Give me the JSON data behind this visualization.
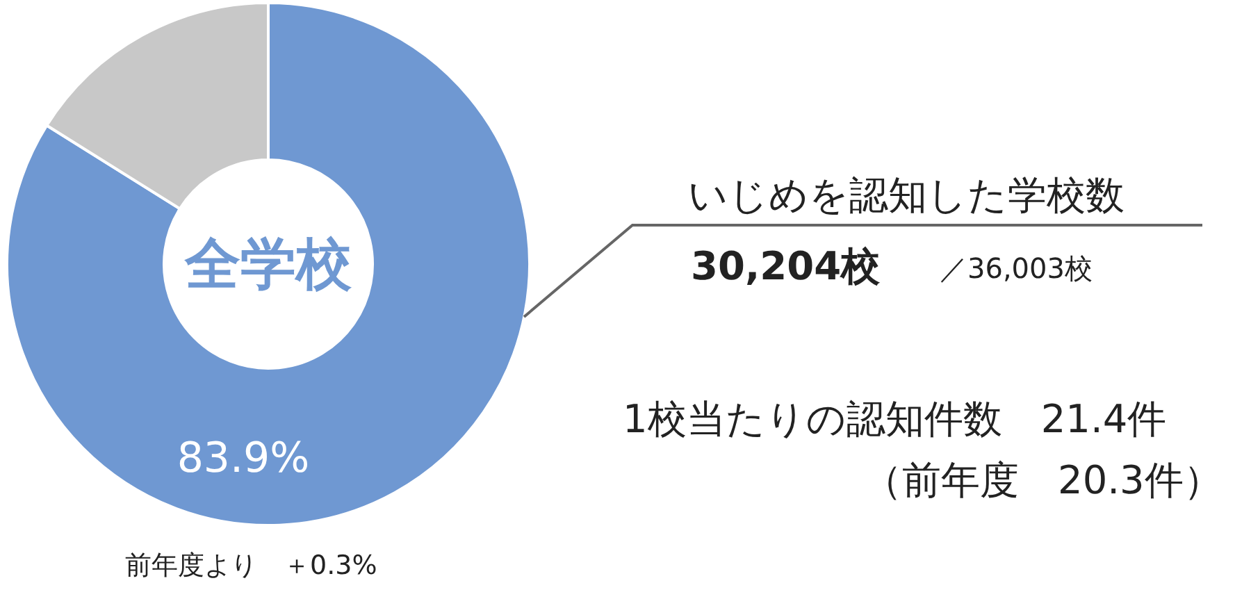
{
  "chart_data": {
    "type": "donut",
    "title": "全学校",
    "categories": [
      null,
      null
    ],
    "values": [
      83.9,
      16.1
    ],
    "colors": [
      "#6f98d2",
      "#c8c8c8"
    ],
    "value_labels": [
      "83.9%",
      null
    ],
    "annotations": [
      "前年度より　＋0.3%",
      "いじめを認知した学校数",
      "30,204校",
      "／36,003校",
      "1校当たりの認知件数　21.4件",
      "（前年度　20.3件）"
    ]
  }
}
